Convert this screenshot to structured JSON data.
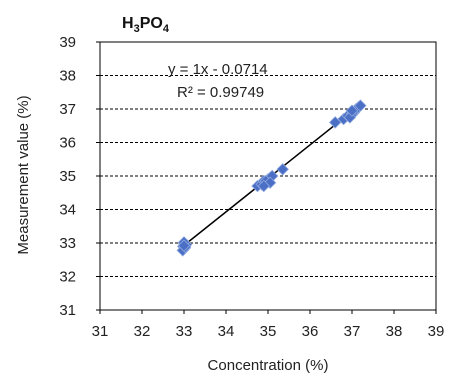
{
  "chart_data": {
    "type": "scatter",
    "title": {
      "main": "H",
      "sub1": "3",
      "mid": "PO",
      "sub2": "4"
    },
    "xlabel": "Concentration (%)",
    "ylabel": "Measurement value (%)",
    "xlim": [
      31,
      39
    ],
    "ylim": [
      31,
      39
    ],
    "x_ticks": [
      "31",
      "32",
      "33",
      "34",
      "35",
      "36",
      "37",
      "38",
      "39"
    ],
    "y_ticks": [
      "31",
      "32",
      "33",
      "34",
      "35",
      "36",
      "37",
      "38",
      "39"
    ],
    "grid": "horizontal dashed",
    "marker_color": "#4a6fc4",
    "trendline": {
      "slope": 1,
      "intercept": -0.0714,
      "color": "#000000"
    },
    "equation": "y = 1x - 0.0714",
    "r_squared": "R² = 0.99749",
    "points": [
      [
        33.0,
        32.98
      ],
      [
        33.02,
        32.85
      ],
      [
        32.98,
        32.9
      ],
      [
        33.05,
        32.95
      ],
      [
        33.0,
        33.02
      ],
      [
        32.97,
        32.78
      ],
      [
        33.03,
        32.88
      ],
      [
        33.0,
        32.92
      ],
      [
        34.75,
        34.7
      ],
      [
        34.85,
        34.75
      ],
      [
        34.9,
        34.85
      ],
      [
        35.0,
        34.9
      ],
      [
        35.05,
        34.95
      ],
      [
        34.95,
        34.85
      ],
      [
        35.1,
        35.0
      ],
      [
        35.05,
        34.8
      ],
      [
        34.9,
        34.7
      ],
      [
        35.35,
        35.2
      ],
      [
        36.6,
        36.6
      ],
      [
        36.8,
        36.7
      ],
      [
        36.9,
        36.8
      ],
      [
        37.0,
        36.85
      ],
      [
        37.05,
        36.9
      ],
      [
        36.95,
        36.75
      ],
      [
        37.1,
        37.0
      ],
      [
        37.15,
        37.05
      ],
      [
        37.2,
        37.1
      ],
      [
        37.0,
        36.95
      ]
    ]
  }
}
